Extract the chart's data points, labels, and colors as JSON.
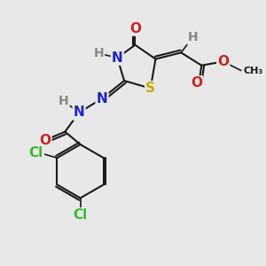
{
  "bg_color": "#e8e8e8",
  "bond_color": "#1a1a1a",
  "atoms": {
    "S": {
      "color": "#ccaa00",
      "size": 11
    },
    "N": {
      "color": "#2222cc",
      "size": 11
    },
    "O": {
      "color": "#cc2222",
      "size": 11
    },
    "Cl": {
      "color": "#33bb33",
      "size": 11
    },
    "H": {
      "color": "#888888",
      "size": 10
    },
    "C": {
      "color": "#1a1a1a",
      "size": 9
    }
  },
  "figsize": [
    3.0,
    3.0
  ],
  "dpi": 100
}
